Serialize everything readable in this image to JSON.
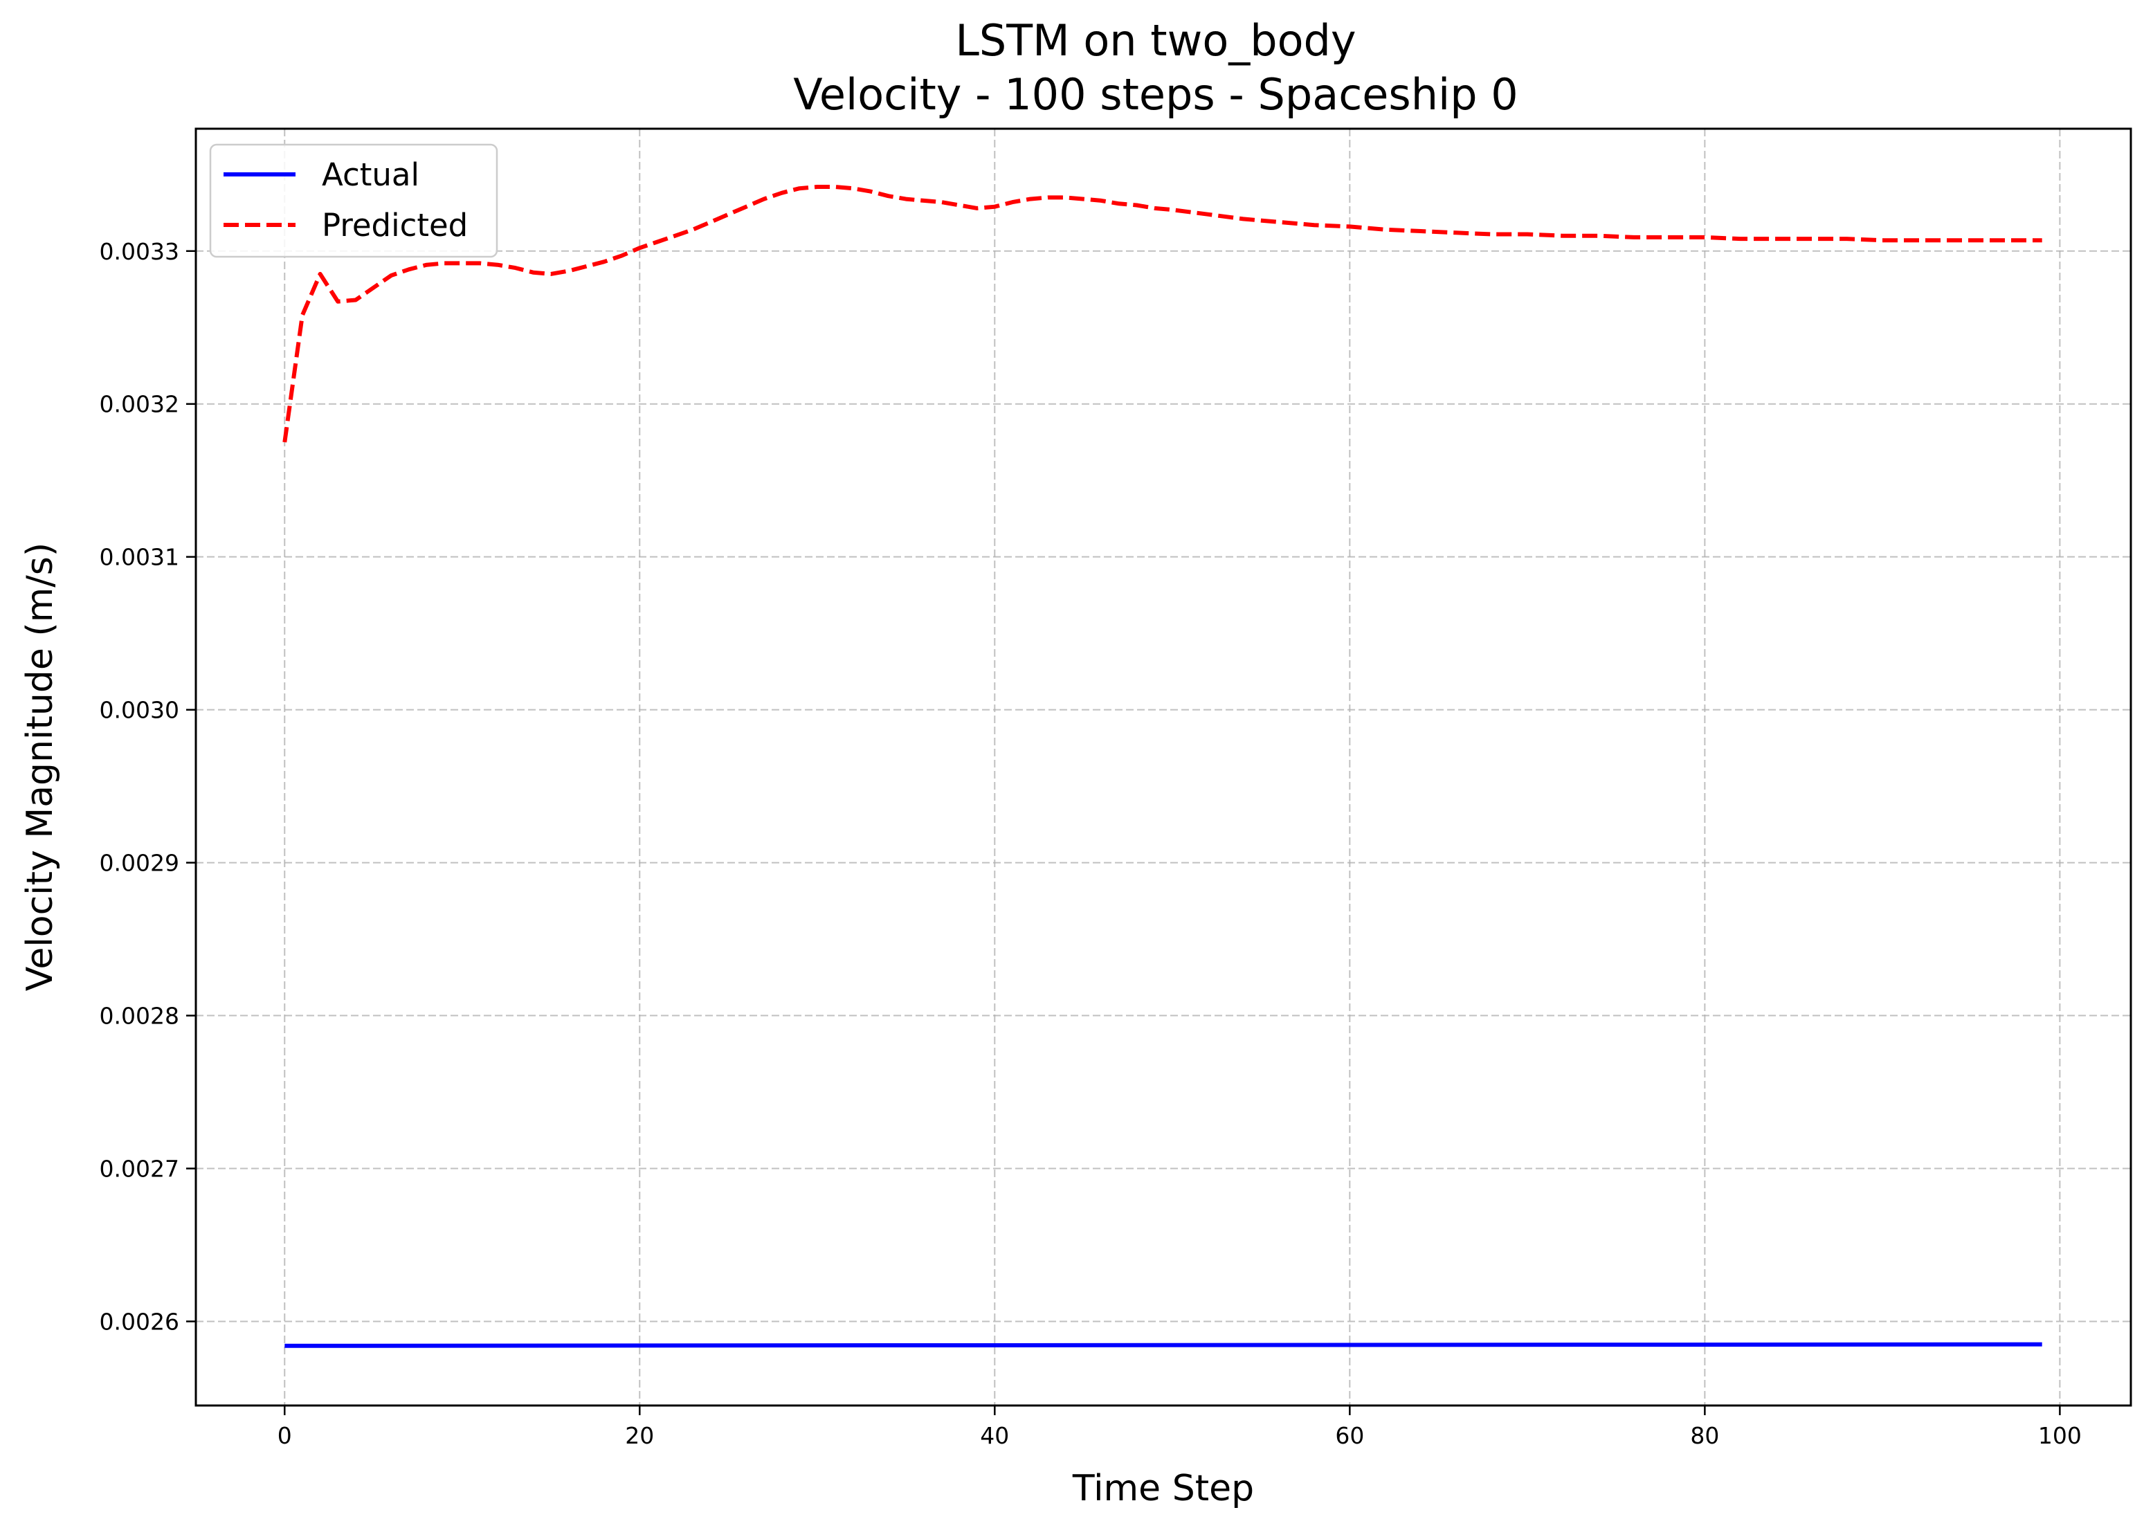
{
  "chart_data": {
    "type": "line",
    "title": "LSTM on two_body",
    "subtitle": "Velocity - 100 steps - Spaceship 0",
    "xlabel": "Time Step",
    "ylabel": "Velocity Magnitude (m/s)",
    "xlim": [
      -5,
      104
    ],
    "ylim": [
      0.002545,
      0.00338
    ],
    "x_ticks": [
      0,
      20,
      40,
      60,
      80,
      100
    ],
    "x_tick_labels": [
      "0",
      "20",
      "40",
      "60",
      "80",
      "100"
    ],
    "y_ticks": [
      0.0026,
      0.0027,
      0.0028,
      0.0029,
      0.003,
      0.0031,
      0.0032,
      0.0033
    ],
    "y_tick_labels": [
      "0.0026",
      "0.0027",
      "0.0028",
      "0.0029",
      "0.0030",
      "0.0031",
      "0.0032",
      "0.0033"
    ],
    "grid": true,
    "legend_position": "top-left",
    "series": [
      {
        "name": "Actual",
        "color": "#0000ff",
        "style": "solid",
        "x": [
          0,
          99
        ],
        "y": [
          0.002584,
          0.002585
        ]
      },
      {
        "name": "Predicted",
        "color": "#ff0000",
        "style": "dashed",
        "x": [
          0,
          1,
          2,
          3,
          4,
          5,
          6,
          7,
          8,
          9,
          10,
          11,
          12,
          13,
          14,
          15,
          16,
          17,
          18,
          19,
          20,
          21,
          22,
          23,
          24,
          25,
          26,
          27,
          28,
          29,
          30,
          31,
          32,
          33,
          34,
          35,
          36,
          37,
          38,
          39,
          40,
          41,
          42,
          43,
          44,
          45,
          46,
          47,
          48,
          49,
          50,
          52,
          54,
          56,
          58,
          60,
          62,
          64,
          66,
          68,
          70,
          72,
          74,
          76,
          78,
          80,
          82,
          84,
          86,
          88,
          90,
          92,
          94,
          96,
          99
        ],
        "y": [
          0.003175,
          0.003258,
          0.003285,
          0.003267,
          0.003268,
          0.003276,
          0.003284,
          0.003288,
          0.003291,
          0.003292,
          0.003292,
          0.003292,
          0.003291,
          0.003289,
          0.003286,
          0.003285,
          0.003287,
          0.00329,
          0.003293,
          0.003297,
          0.003302,
          0.003306,
          0.00331,
          0.003314,
          0.003319,
          0.003324,
          0.003329,
          0.003334,
          0.003338,
          0.003341,
          0.003342,
          0.003342,
          0.003341,
          0.003339,
          0.003336,
          0.003334,
          0.003333,
          0.003332,
          0.00333,
          0.003328,
          0.003329,
          0.003332,
          0.003334,
          0.003335,
          0.003335,
          0.003334,
          0.003333,
          0.003331,
          0.00333,
          0.003328,
          0.003327,
          0.003324,
          0.003321,
          0.003319,
          0.003317,
          0.003316,
          0.003314,
          0.003313,
          0.003312,
          0.003311,
          0.003311,
          0.00331,
          0.00331,
          0.003309,
          0.003309,
          0.003309,
          0.003308,
          0.003308,
          0.003308,
          0.003308,
          0.003307,
          0.003307,
          0.003307,
          0.003307,
          0.003307
        ]
      }
    ]
  }
}
